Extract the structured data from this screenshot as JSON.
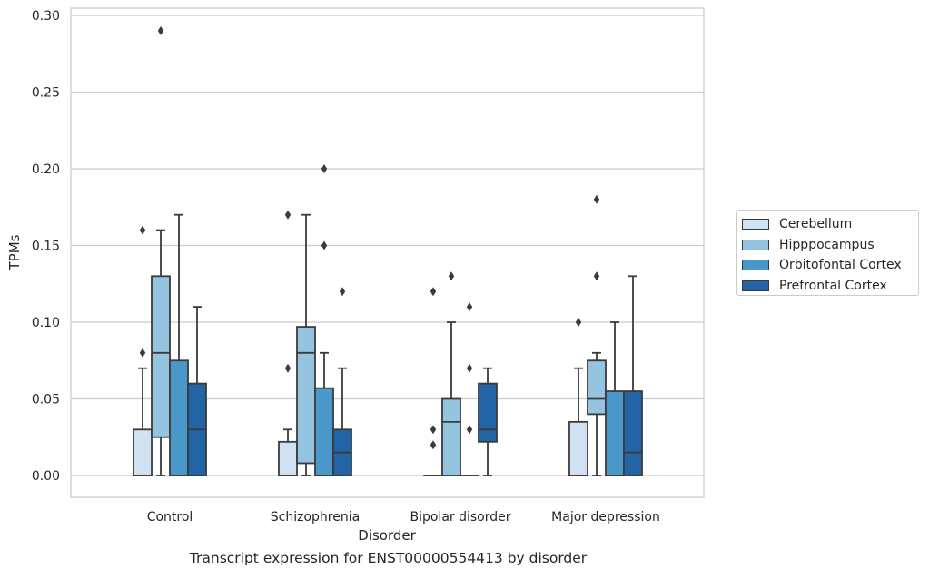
{
  "caption": "Transcript expression for ENST00000554413 by disorder",
  "chart_data": {
    "type": "box",
    "xlabel": "Disorder",
    "ylabel": "TPMs",
    "ylim": [
      -0.015,
      0.305
    ],
    "yticks": [
      "0.00",
      "0.05",
      "0.10",
      "0.15",
      "0.20",
      "0.25",
      "0.30"
    ],
    "ytick_values": [
      0,
      0.05,
      0.1,
      0.15,
      0.2,
      0.25,
      0.3
    ],
    "grid": "horizontal",
    "legend_position": "right",
    "categories": [
      "Control",
      "Schizophrenia",
      "Bipolar disorder",
      "Major depression"
    ],
    "series": [
      {
        "name": "Cerebellum",
        "color": "#d0e1f2",
        "boxes": [
          {
            "low": 0,
            "q1": 0,
            "median": 0,
            "q3": 0.03,
            "high": 0.07,
            "outliers": [
              0.08,
              0.16
            ]
          },
          {
            "low": 0,
            "q1": 0,
            "median": 0,
            "q3": 0.022,
            "high": 0.03,
            "outliers": [
              0.07,
              0.17
            ]
          },
          {
            "low": 0,
            "q1": 0,
            "median": 0,
            "q3": 0,
            "high": 0,
            "outliers": [
              0.02,
              0.03,
              0.12
            ]
          },
          {
            "low": 0,
            "q1": 0,
            "median": 0,
            "q3": 0.035,
            "high": 0.07,
            "outliers": [
              0.1
            ]
          }
        ]
      },
      {
        "name": "Hipppocampus",
        "color": "#94c4df",
        "boxes": [
          {
            "low": 0,
            "q1": 0.025,
            "median": 0.08,
            "q3": 0.13,
            "high": 0.16,
            "outliers": [
              0.29
            ]
          },
          {
            "low": 0,
            "q1": 0.008,
            "median": 0.08,
            "q3": 0.097,
            "high": 0.17,
            "outliers": []
          },
          {
            "low": 0,
            "q1": 0,
            "median": 0.035,
            "q3": 0.05,
            "high": 0.1,
            "outliers": [
              0.13
            ]
          },
          {
            "low": 0,
            "q1": 0.04,
            "median": 0.05,
            "q3": 0.075,
            "high": 0.08,
            "outliers": [
              0.13,
              0.18
            ]
          }
        ]
      },
      {
        "name": "Orbitofontal Cortex",
        "color": "#4a98c9",
        "boxes": [
          {
            "low": 0,
            "q1": 0,
            "median": 0,
            "q3": 0.075,
            "high": 0.17,
            "outliers": []
          },
          {
            "low": 0,
            "q1": 0,
            "median": 0,
            "q3": 0.057,
            "high": 0.08,
            "outliers": [
              0.15,
              0.2
            ]
          },
          {
            "low": 0,
            "q1": 0,
            "median": 0,
            "q3": 0,
            "high": 0,
            "outliers": [
              0.03,
              0.07,
              0.11
            ]
          },
          {
            "low": 0,
            "q1": 0,
            "median": 0,
            "q3": 0.055,
            "high": 0.1,
            "outliers": []
          }
        ]
      },
      {
        "name": "Prefrontal Cortex",
        "color": "#2264a5",
        "boxes": [
          {
            "low": 0,
            "q1": 0,
            "median": 0.03,
            "q3": 0.06,
            "high": 0.11,
            "outliers": []
          },
          {
            "low": 0,
            "q1": 0,
            "median": 0.015,
            "q3": 0.03,
            "high": 0.07,
            "outliers": [
              0.12
            ]
          },
          {
            "low": 0,
            "q1": 0.022,
            "median": 0.03,
            "q3": 0.06,
            "high": 0.07,
            "outliers": []
          },
          {
            "low": 0,
            "q1": 0,
            "median": 0.015,
            "q3": 0.055,
            "high": 0.13,
            "outliers": []
          }
        ]
      }
    ]
  }
}
